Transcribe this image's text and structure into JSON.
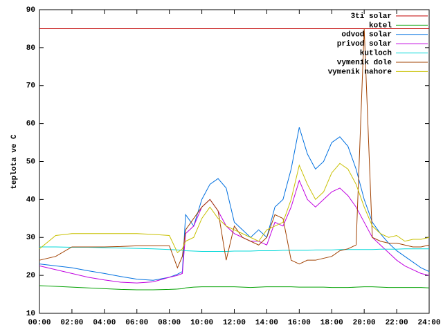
{
  "chart_data": {
    "type": "line",
    "y_label": "teplota ve C",
    "x": [
      0,
      1,
      2,
      3,
      4,
      5,
      6,
      7,
      8,
      8.5,
      8.8,
      9,
      9.5,
      10,
      10.5,
      11,
      11.5,
      12,
      12.5,
      13,
      13.5,
      14,
      14.5,
      15,
      15.5,
      16,
      16.5,
      17,
      17.5,
      18,
      18.5,
      19,
      19.5,
      20,
      20.5,
      21,
      21.5,
      22,
      22.5,
      23,
      23.5,
      24
    ],
    "xlim": [
      0,
      24
    ],
    "xticks": [
      {
        "value": 0,
        "label": "00:00"
      },
      {
        "value": 2,
        "label": "02:00"
      },
      {
        "value": 4,
        "label": "04:00"
      },
      {
        "value": 6,
        "label": "06:00"
      },
      {
        "value": 8,
        "label": "08:00"
      },
      {
        "value": 10,
        "label": "10:00"
      },
      {
        "value": 12,
        "label": "12:00"
      },
      {
        "value": 14,
        "label": "14:00"
      },
      {
        "value": 16,
        "label": "16:00"
      },
      {
        "value": 18,
        "label": "18:00"
      },
      {
        "value": 20,
        "label": "20:00"
      },
      {
        "value": 22,
        "label": "22:00"
      },
      {
        "value": 24,
        "label": "24:00"
      }
    ],
    "ylim": [
      10,
      90
    ],
    "yticks": [
      10,
      20,
      30,
      40,
      50,
      60,
      70,
      80,
      90
    ],
    "grid": false,
    "legend": "top right",
    "series": [
      {
        "name": "3ti solar",
        "color": "#c00000",
        "values": [
          85,
          85,
          85,
          85,
          85,
          85,
          85,
          85,
          85,
          85,
          85,
          85,
          85,
          85,
          85,
          85,
          85,
          85,
          85,
          85,
          85,
          85,
          85,
          85,
          85,
          85,
          85,
          85,
          85,
          85,
          85,
          85,
          85,
          85,
          85,
          85,
          85,
          85,
          85,
          85,
          85,
          85
        ]
      },
      {
        "name": "kotel",
        "color": "#00a000",
        "values": [
          17.3,
          17.1,
          16.9,
          16.7,
          16.5,
          16.3,
          16.2,
          16.2,
          16.3,
          16.4,
          16.5,
          16.7,
          16.9,
          17,
          17,
          17,
          17,
          17,
          16.9,
          16.8,
          16.9,
          17,
          17,
          17,
          17,
          16.9,
          16.9,
          16.9,
          16.9,
          16.8,
          16.8,
          16.8,
          16.9,
          17,
          17,
          16.9,
          16.8,
          16.8,
          16.8,
          16.8,
          16.8,
          16.7
        ]
      },
      {
        "name": "odvod solar",
        "color": "#0070e0",
        "values": [
          23,
          22.5,
          22,
          21.2,
          20.5,
          19.7,
          19,
          18.7,
          19.5,
          20.3,
          21,
          36,
          33,
          40,
          44,
          45.5,
          43,
          34,
          32,
          30,
          32,
          30,
          38,
          40,
          48,
          59,
          52,
          48,
          50,
          55,
          56.5,
          54,
          48,
          40,
          34,
          31,
          28.5,
          26.5,
          25,
          23.5,
          22,
          21
        ]
      },
      {
        "name": "privod solar",
        "color": "#c000e0",
        "values": [
          22.5,
          21.5,
          20.5,
          19.5,
          18.8,
          18.2,
          18,
          18.3,
          19.5,
          20,
          20.5,
          31,
          33,
          38,
          40,
          37,
          33,
          31,
          30,
          29,
          29,
          28,
          34,
          33,
          38,
          45,
          40,
          38,
          40,
          42,
          43,
          41,
          38,
          34,
          30,
          28,
          26,
          24,
          22.5,
          21.5,
          20.5,
          20
        ]
      },
      {
        "name": "kutloch",
        "color": "#00d8d8",
        "values": [
          27.5,
          27.5,
          27.4,
          27.4,
          27.3,
          27.2,
          27.1,
          27,
          26.8,
          26.7,
          26.6,
          26.5,
          26.4,
          26.3,
          26.3,
          26.3,
          26.3,
          26.4,
          26.4,
          26.4,
          26.5,
          26.5,
          26.5,
          26.6,
          26.6,
          26.6,
          26.6,
          26.7,
          26.7,
          26.7,
          26.8,
          26.8,
          26.8,
          26.8,
          26.8,
          26.9,
          26.9,
          26.9,
          27,
          27,
          27,
          27
        ]
      },
      {
        "name": "vymenik dole",
        "color": "#a04000",
        "values": [
          24,
          25,
          27.5,
          27.5,
          27.5,
          27.6,
          27.8,
          27.8,
          27.8,
          22,
          25,
          32,
          35,
          38,
          40,
          37,
          24,
          33,
          30,
          29,
          28,
          30,
          36,
          35,
          24,
          23,
          24,
          24,
          24.5,
          25,
          26.5,
          27,
          28,
          85,
          30,
          29,
          28.5,
          28.5,
          28,
          27.5,
          27.5,
          28
        ]
      },
      {
        "name": "vymenik nahore",
        "color": "#c8c000",
        "values": [
          27,
          30.5,
          31,
          31,
          31,
          31,
          31,
          30.8,
          30.5,
          26,
          27,
          29,
          30,
          35,
          38,
          35,
          33,
          32,
          31,
          30,
          29,
          32,
          33,
          34,
          40,
          49,
          44,
          40,
          42,
          47,
          49.5,
          48,
          44,
          38,
          33,
          31,
          30,
          30.5,
          29,
          29.5,
          29.5,
          30
        ]
      }
    ]
  }
}
